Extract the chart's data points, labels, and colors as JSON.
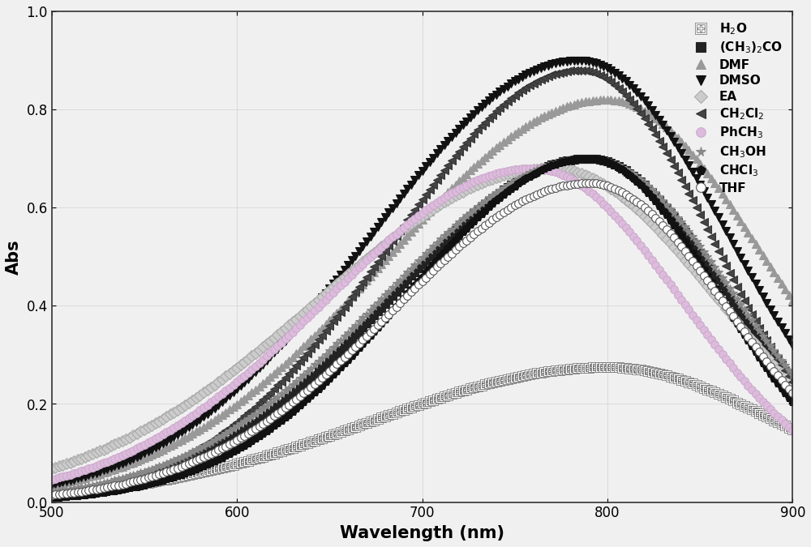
{
  "title": "",
  "xlabel": "Wavelength (nm)",
  "ylabel": "Abs",
  "xlim": [
    500,
    900
  ],
  "ylim": [
    0.0,
    1.0
  ],
  "xticks": [
    500,
    600,
    700,
    800,
    900
  ],
  "yticks": [
    0.0,
    0.2,
    0.4,
    0.6,
    0.8,
    1.0
  ],
  "series": [
    {
      "label": "H$_2$O",
      "color": "#666666",
      "marker": "s",
      "marker_face": "white",
      "marker_edge": "#666666",
      "linestyle": "none",
      "peak_wl": 800,
      "peak_abs": 0.275,
      "sigma": 90,
      "skew": 2.5
    },
    {
      "label": "(CH$_3$)$_2$CO",
      "color": "#222222",
      "marker": "s",
      "marker_face": "#222222",
      "marker_edge": "#222222",
      "linestyle": "none",
      "peak_wl": 790,
      "peak_abs": 0.7,
      "sigma": 75,
      "skew": 3.0
    },
    {
      "label": "DMF",
      "color": "#999999",
      "marker": "^",
      "marker_face": "#999999",
      "marker_edge": "#999999",
      "linestyle": "none",
      "peak_wl": 800,
      "peak_abs": 0.82,
      "sigma": 85,
      "skew": 3.0
    },
    {
      "label": "DMSO",
      "color": "#111111",
      "marker": "v",
      "marker_face": "#111111",
      "marker_edge": "#111111",
      "linestyle": "none",
      "peak_wl": 785,
      "peak_abs": 0.9,
      "sigma": 80,
      "skew": 2.0
    },
    {
      "label": "EA",
      "color": "#aaaaaa",
      "marker": "D",
      "marker_face": "#cccccc",
      "marker_edge": "#aaaaaa",
      "linestyle": "none",
      "peak_wl": 770,
      "peak_abs": 0.68,
      "sigma": 90,
      "skew": 2.5
    },
    {
      "label": "CH$_2$Cl$_2$",
      "color": "#333333",
      "marker": "<",
      "marker_face": "#444444",
      "marker_edge": "#333333",
      "linestyle": "none",
      "peak_wl": 785,
      "peak_abs": 0.88,
      "sigma": 72,
      "skew": 3.0
    },
    {
      "label": "PhCH$_3$",
      "color": "#ccaacc",
      "marker": "o",
      "marker_face": "#ddbbdd",
      "marker_edge": "#ccaacc",
      "linestyle": "none",
      "peak_wl": 760,
      "peak_abs": 0.68,
      "sigma": 80,
      "skew": 2.5
    },
    {
      "label": "CH$_3$OH",
      "color": "#888888",
      "marker": "*",
      "marker_face": "#888888",
      "marker_edge": "#888888",
      "linestyle": "none",
      "peak_wl": 790,
      "peak_abs": 0.7,
      "sigma": 78,
      "skew": 3.0
    },
    {
      "label": "CHCl$_3$",
      "color": "#111111",
      "marker": "p",
      "marker_face": "#111111",
      "marker_edge": "#111111",
      "linestyle": "none",
      "peak_wl": 790,
      "peak_abs": 0.7,
      "sigma": 70,
      "skew": 3.0
    },
    {
      "label": "THF",
      "color": "#555555",
      "marker": "o",
      "marker_face": "white",
      "marker_edge": "#555555",
      "linestyle": "none",
      "peak_wl": 790,
      "peak_abs": 0.65,
      "sigma": 75,
      "skew": 3.0
    }
  ],
  "marker_size": 7,
  "linewidth": 0,
  "legend_fontsize": 11,
  "axis_fontsize": 15,
  "tick_fontsize": 12,
  "grid": true,
  "grid_color": "#cccccc",
  "background_color": "#f0f0f0"
}
